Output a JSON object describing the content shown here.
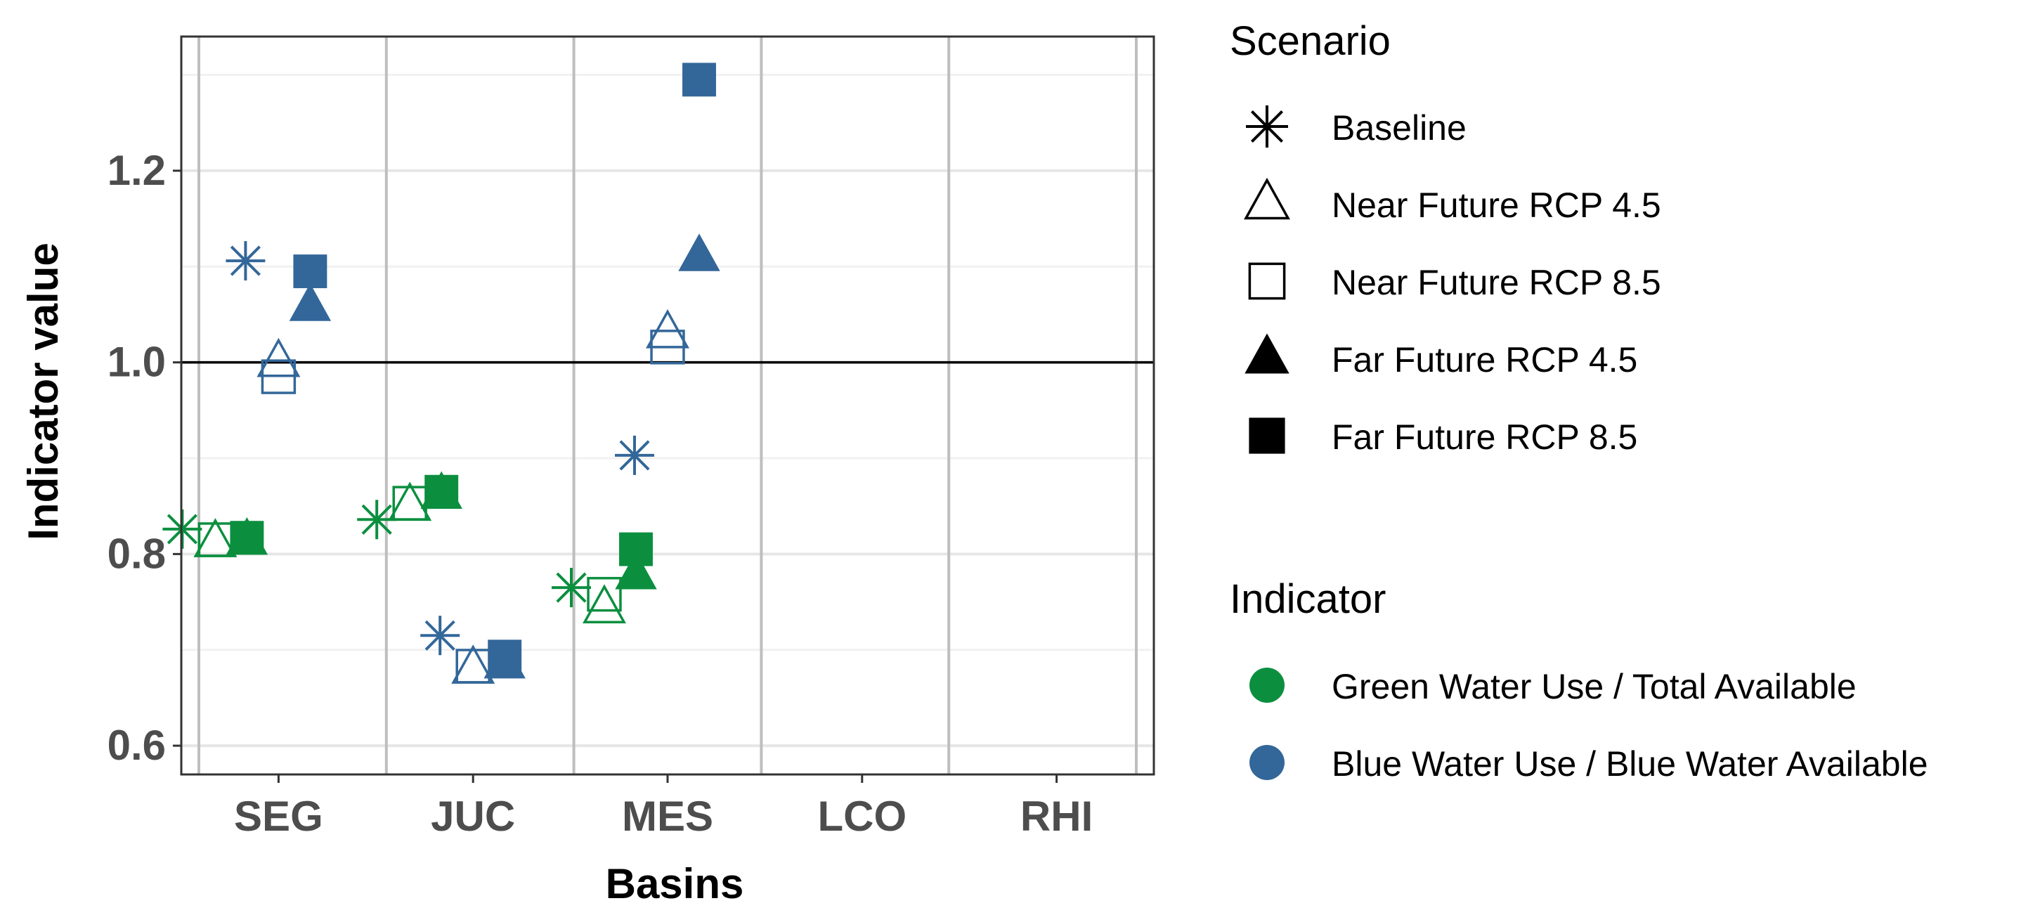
{
  "chart_data": {
    "type": "scatter",
    "xlabel": "Basins",
    "ylabel": "Indicator value",
    "categories": [
      "SEG",
      "JUC",
      "MES",
      "LCO",
      "RHI"
    ],
    "ylim": [
      0.57,
      1.34
    ],
    "yticks": [
      0.6,
      0.8,
      1.0,
      1.2
    ],
    "ytick_labels": [
      "0.6",
      "0.8",
      "1.0",
      "1.2"
    ],
    "reference_line": 1.0,
    "grid": true,
    "legend_position": "right",
    "scenario_legend": {
      "title": "Scenario",
      "entries": [
        {
          "label": "Baseline",
          "shape": "asterisk"
        },
        {
          "label": "Near Future RCP 4.5",
          "shape": "triangle-open"
        },
        {
          "label": "Near Future RCP 8.5",
          "shape": "square-open"
        },
        {
          "label": "Far Future RCP 4.5",
          "shape": "triangle-filled"
        },
        {
          "label": "Far Future RCP 8.5",
          "shape": "square-filled"
        }
      ]
    },
    "indicator_legend": {
      "title": "Indicator",
      "entries": [
        {
          "label": "Green Water Use / Total Available",
          "color": "#0b8f3f"
        },
        {
          "label": "Blue Water Use / Blue Water Available",
          "color": "#336799"
        }
      ]
    },
    "series": [
      {
        "indicator": "green",
        "basin": "SEG",
        "scenario": "Baseline",
        "y": 0.826
      },
      {
        "indicator": "green",
        "basin": "SEG",
        "scenario": "Near Future RCP 4.5",
        "y": 0.812
      },
      {
        "indicator": "green",
        "basin": "SEG",
        "scenario": "Near Future RCP 8.5",
        "y": 0.815
      },
      {
        "indicator": "green",
        "basin": "SEG",
        "scenario": "Far Future RCP 4.5",
        "y": 0.814
      },
      {
        "indicator": "green",
        "basin": "SEG",
        "scenario": "Far Future RCP 8.5",
        "y": 0.817
      },
      {
        "indicator": "blue",
        "basin": "SEG",
        "scenario": "Baseline",
        "y": 1.106
      },
      {
        "indicator": "blue",
        "basin": "SEG",
        "scenario": "Near Future RCP 4.5",
        "y": 1.0
      },
      {
        "indicator": "blue",
        "basin": "SEG",
        "scenario": "Near Future RCP 8.5",
        "y": 0.985
      },
      {
        "indicator": "blue",
        "basin": "SEG",
        "scenario": "Far Future RCP 4.5",
        "y": 1.058
      },
      {
        "indicator": "blue",
        "basin": "SEG",
        "scenario": "Far Future RCP 8.5",
        "y": 1.095
      },
      {
        "indicator": "green",
        "basin": "JUC",
        "scenario": "Baseline",
        "y": 0.836
      },
      {
        "indicator": "green",
        "basin": "JUC",
        "scenario": "Near Future RCP 4.5",
        "y": 0.85
      },
      {
        "indicator": "green",
        "basin": "JUC",
        "scenario": "Near Future RCP 8.5",
        "y": 0.853
      },
      {
        "indicator": "green",
        "basin": "JUC",
        "scenario": "Far Future RCP 4.5",
        "y": 0.862
      },
      {
        "indicator": "green",
        "basin": "JUC",
        "scenario": "Far Future RCP 8.5",
        "y": 0.865
      },
      {
        "indicator": "blue",
        "basin": "JUC",
        "scenario": "Baseline",
        "y": 0.715
      },
      {
        "indicator": "blue",
        "basin": "JUC",
        "scenario": "Near Future RCP 4.5",
        "y": 0.68
      },
      {
        "indicator": "blue",
        "basin": "JUC",
        "scenario": "Near Future RCP 8.5",
        "y": 0.683
      },
      {
        "indicator": "blue",
        "basin": "JUC",
        "scenario": "Far Future RCP 4.5",
        "y": 0.685
      },
      {
        "indicator": "blue",
        "basin": "JUC",
        "scenario": "Far Future RCP 8.5",
        "y": 0.693
      },
      {
        "indicator": "green",
        "basin": "MES",
        "scenario": "Baseline",
        "y": 0.765
      },
      {
        "indicator": "green",
        "basin": "MES",
        "scenario": "Near Future RCP 4.5",
        "y": 0.743
      },
      {
        "indicator": "green",
        "basin": "MES",
        "scenario": "Near Future RCP 8.5",
        "y": 0.758
      },
      {
        "indicator": "green",
        "basin": "MES",
        "scenario": "Far Future RCP 4.5",
        "y": 0.778
      },
      {
        "indicator": "green",
        "basin": "MES",
        "scenario": "Far Future RCP 8.5",
        "y": 0.805
      },
      {
        "indicator": "blue",
        "basin": "MES",
        "scenario": "Baseline",
        "y": 0.903
      },
      {
        "indicator": "blue",
        "basin": "MES",
        "scenario": "Near Future RCP 4.5",
        "y": 1.03
      },
      {
        "indicator": "blue",
        "basin": "MES",
        "scenario": "Near Future RCP 8.5",
        "y": 1.016
      },
      {
        "indicator": "blue",
        "basin": "MES",
        "scenario": "Far Future RCP 4.5",
        "y": 1.11
      },
      {
        "indicator": "blue",
        "basin": "MES",
        "scenario": "Far Future RCP 8.5",
        "y": 1.295
      }
    ]
  }
}
